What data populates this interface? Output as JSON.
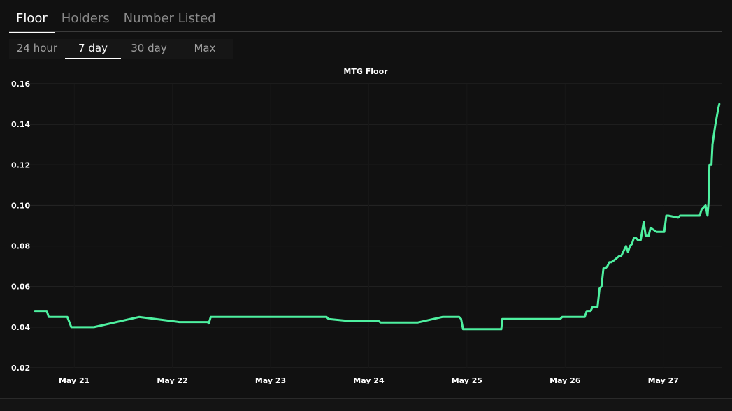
{
  "tabs": [
    {
      "label": "Floor",
      "active": true
    },
    {
      "label": "Holders",
      "active": false
    },
    {
      "label": "Number Listed",
      "active": false
    }
  ],
  "ranges": [
    {
      "label": "24 hour",
      "active": false
    },
    {
      "label": "7 day",
      "active": true
    },
    {
      "label": "30 day",
      "active": false
    },
    {
      "label": "Max",
      "active": false
    }
  ],
  "colors": {
    "background": "#111111",
    "line": "#4ef0a0",
    "grid": "#262626",
    "tick_text": "#ffffff"
  },
  "chart_data": {
    "type": "line",
    "title": "MTG Floor",
    "xlabel": "",
    "ylabel": "",
    "x_tick_labels": [
      "May 21",
      "May 22",
      "May 23",
      "May 24",
      "May 25",
      "May 26",
      "May 27"
    ],
    "x_tick_values": [
      21,
      22,
      23,
      24,
      25,
      26,
      27
    ],
    "xlim": [
      20.6,
      27.6
    ],
    "y_tick_labels": [
      "0.02",
      "0.04",
      "0.06",
      "0.08",
      "0.10",
      "0.12",
      "0.14",
      "0.16"
    ],
    "y_tick_values": [
      0.02,
      0.04,
      0.06,
      0.08,
      0.1,
      0.12,
      0.14,
      0.16
    ],
    "ylim": [
      0.02,
      0.16
    ],
    "grid": true,
    "legend": "none",
    "series": [
      {
        "x": [
          20.6,
          20.72,
          20.74,
          20.93,
          20.97,
          21.2,
          21.66,
          22.07,
          22.36,
          22.37,
          22.39,
          22.5,
          23.3,
          23.57,
          23.59,
          23.8,
          24.1,
          24.12,
          24.5,
          24.75,
          24.92,
          24.94,
          24.96,
          25.35,
          25.36,
          25.6,
          25.95,
          25.97,
          26.2,
          26.22,
          26.26,
          26.28,
          26.33,
          26.35,
          26.37,
          26.39,
          26.41,
          26.43,
          26.45,
          26.47,
          26.5,
          26.55,
          26.57,
          26.62,
          26.64,
          26.66,
          26.68,
          26.7,
          26.72,
          26.74,
          26.77,
          26.8,
          26.82,
          26.83,
          26.85,
          26.87,
          26.9,
          26.93,
          26.95,
          26.97,
          27.01,
          27.03,
          27.05,
          27.15,
          27.17,
          27.25,
          27.27,
          27.37,
          27.39,
          27.43,
          27.45,
          27.46,
          27.47,
          27.48,
          27.49,
          27.5,
          27.53,
          27.56,
          27.57
        ],
        "y": [
          0.048,
          0.048,
          0.045,
          0.045,
          0.04,
          0.04,
          0.045,
          0.0425,
          0.0425,
          0.0418,
          0.045,
          0.045,
          0.045,
          0.045,
          0.044,
          0.043,
          0.043,
          0.0423,
          0.0423,
          0.045,
          0.045,
          0.044,
          0.039,
          0.039,
          0.044,
          0.044,
          0.044,
          0.045,
          0.045,
          0.048,
          0.048,
          0.05,
          0.05,
          0.059,
          0.06,
          0.069,
          0.069,
          0.07,
          0.072,
          0.072,
          0.073,
          0.075,
          0.075,
          0.08,
          0.077,
          0.08,
          0.081,
          0.084,
          0.084,
          0.083,
          0.083,
          0.092,
          0.085,
          0.085,
          0.085,
          0.089,
          0.088,
          0.087,
          0.087,
          0.087,
          0.087,
          0.095,
          0.095,
          0.094,
          0.095,
          0.095,
          0.095,
          0.095,
          0.098,
          0.1,
          0.095,
          0.101,
          0.12,
          0.12,
          0.12,
          0.13,
          0.14,
          0.148,
          0.15
        ]
      }
    ]
  }
}
